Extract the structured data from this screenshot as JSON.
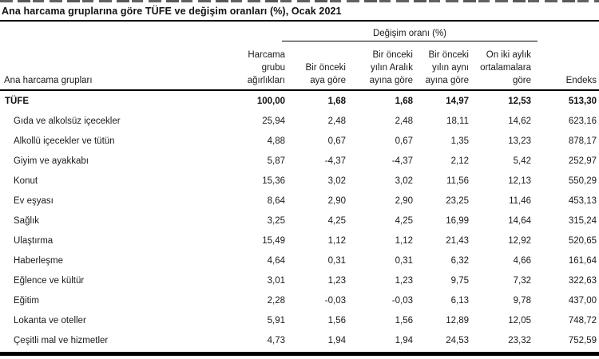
{
  "title": "Ana harcama gruplarına göre TÜFE ve değişim oranları (%), Ocak 2021",
  "chart_data": {
    "type": "table",
    "title": "Ana harcama gruplarına göre TÜFE ve değişim oranları (%), Ocak 2021",
    "group_header": "Değişim oranı (%)",
    "group_header_spans_columns": [
      "Bir önceki aya göre",
      "Bir önceki yılın Aralık ayına göre",
      "Bir önceki yılın aynı ayına göre",
      "On iki aylık ortalamalara göre"
    ],
    "columns": {
      "name": "Ana harcama grupları",
      "weight": "Harcama\ngrubu\nağırlıkları",
      "monthly": "Bir önceki\naya göre",
      "vs_december": "Bir önceki\nyılın Aralık\nayına göre",
      "vs_same_month": "Bir önceki\nyılın aynı\nayına göre",
      "twelve_month_avg": "On iki aylık\nortalamalara\ngöre",
      "index": "Endeks"
    },
    "rows": [
      {
        "name": "TÜFE",
        "values": [
          "100,00",
          "1,68",
          "1,68",
          "14,97",
          "12,53",
          "513,30"
        ]
      },
      {
        "name": "Gıda ve alkolsüz içecekler",
        "values": [
          "25,94",
          "2,48",
          "2,48",
          "18,11",
          "14,62",
          "623,16"
        ]
      },
      {
        "name": "Alkollü içecekler ve tütün",
        "values": [
          "4,88",
          "0,67",
          "0,67",
          "1,35",
          "13,23",
          "878,17"
        ]
      },
      {
        "name": "Giyim ve ayakkabı",
        "values": [
          "5,87",
          "-4,37",
          "-4,37",
          "2,12",
          "5,42",
          "252,97"
        ]
      },
      {
        "name": "Konut",
        "values": [
          "15,36",
          "3,02",
          "3,02",
          "11,56",
          "12,13",
          "550,29"
        ]
      },
      {
        "name": "Ev eşyası",
        "values": [
          "8,64",
          "2,90",
          "2,90",
          "23,25",
          "11,46",
          "453,13"
        ]
      },
      {
        "name": "Sağlık",
        "values": [
          "3,25",
          "4,25",
          "4,25",
          "16,99",
          "14,64",
          "315,24"
        ]
      },
      {
        "name": "Ulaştırma",
        "values": [
          "15,49",
          "1,12",
          "1,12",
          "21,43",
          "12,92",
          "520,65"
        ]
      },
      {
        "name": "Haberleşme",
        "values": [
          "4,64",
          "0,31",
          "0,31",
          "6,32",
          "4,66",
          "161,64"
        ]
      },
      {
        "name": "Eğlence ve kültür",
        "values": [
          "3,01",
          "1,23",
          "1,23",
          "9,75",
          "7,32",
          "322,63"
        ]
      },
      {
        "name": "Eğitim",
        "values": [
          "2,28",
          "-0,03",
          "-0,03",
          "6,13",
          "9,78",
          "437,00"
        ]
      },
      {
        "name": "Lokanta ve oteller",
        "values": [
          "5,91",
          "1,56",
          "1,56",
          "12,89",
          "12,05",
          "748,72"
        ]
      },
      {
        "name": "Çeşitli mal ve hizmetler",
        "values": [
          "4,73",
          "1,94",
          "1,94",
          "24,53",
          "23,32",
          "752,59"
        ]
      }
    ]
  }
}
